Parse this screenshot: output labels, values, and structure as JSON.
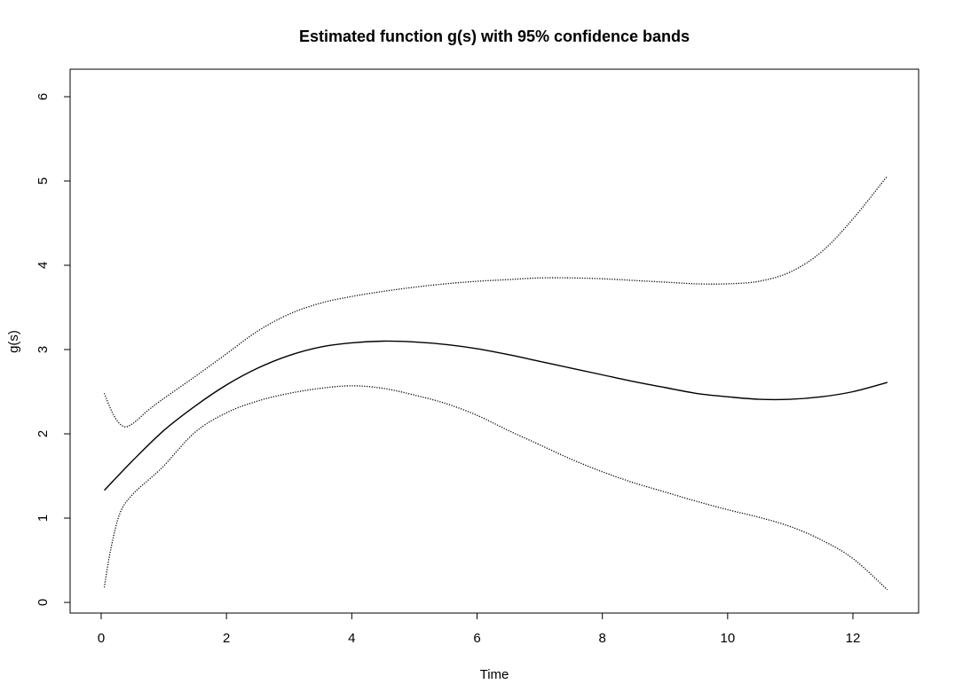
{
  "chart_data": {
    "type": "line",
    "title": "Estimated function g(s) with 95% confidence bands",
    "xlabel": "Time",
    "ylabel": "g(s)",
    "xlim": [
      0,
      12.6
    ],
    "ylim": [
      0,
      6
    ],
    "x_ticks": [
      "0",
      "2",
      "4",
      "6",
      "8",
      "10",
      "12"
    ],
    "y_ticks": [
      "0",
      "1",
      "2",
      "3",
      "4",
      "5",
      "6"
    ],
    "grid": false,
    "legend": "none",
    "series": [
      {
        "line_style": "solid",
        "x": [
          0.05,
          0.5,
          1.0,
          1.5,
          2.0,
          2.5,
          3.0,
          3.5,
          4.0,
          4.5,
          5.0,
          5.5,
          6.0,
          6.5,
          7.0,
          7.5,
          8.0,
          8.5,
          9.0,
          9.5,
          10.0,
          10.5,
          11.0,
          11.5,
          12.0,
          12.55
        ],
        "y": [
          1.33,
          1.68,
          2.04,
          2.33,
          2.58,
          2.78,
          2.93,
          3.03,
          3.08,
          3.1,
          3.09,
          3.06,
          3.01,
          2.94,
          2.86,
          2.78,
          2.7,
          2.62,
          2.55,
          2.48,
          2.44,
          2.41,
          2.41,
          2.44,
          2.5,
          2.61
        ]
      },
      {
        "line_style": "dotted",
        "x": [
          0.05,
          0.2,
          0.35,
          0.5,
          0.75,
          1.0,
          1.5,
          2.0,
          2.5,
          3.0,
          3.5,
          4.0,
          4.5,
          5.0,
          5.5,
          6.0,
          6.5,
          7.0,
          7.5,
          8.0,
          8.5,
          9.0,
          9.5,
          10.0,
          10.5,
          11.0,
          11.5,
          12.0,
          12.55
        ],
        "y": [
          2.48,
          2.22,
          2.09,
          2.12,
          2.28,
          2.42,
          2.68,
          2.95,
          3.22,
          3.42,
          3.55,
          3.63,
          3.69,
          3.74,
          3.78,
          3.81,
          3.83,
          3.85,
          3.85,
          3.84,
          3.82,
          3.8,
          3.78,
          3.78,
          3.81,
          3.92,
          4.16,
          4.55,
          5.06
        ]
      },
      {
        "line_style": "dotted",
        "x": [
          0.05,
          0.15,
          0.3,
          0.5,
          0.75,
          1.0,
          1.5,
          2.0,
          2.5,
          3.0,
          3.5,
          4.0,
          4.5,
          5.0,
          5.5,
          6.0,
          6.5,
          7.0,
          7.5,
          8.0,
          8.5,
          9.0,
          9.5,
          10.0,
          10.5,
          11.0,
          11.5,
          12.0,
          12.55
        ],
        "y": [
          0.18,
          0.62,
          1.06,
          1.28,
          1.45,
          1.62,
          2.02,
          2.25,
          2.39,
          2.48,
          2.54,
          2.57,
          2.54,
          2.46,
          2.36,
          2.22,
          2.04,
          1.87,
          1.7,
          1.55,
          1.42,
          1.31,
          1.2,
          1.1,
          1.01,
          0.9,
          0.74,
          0.52,
          0.15
        ]
      }
    ]
  }
}
